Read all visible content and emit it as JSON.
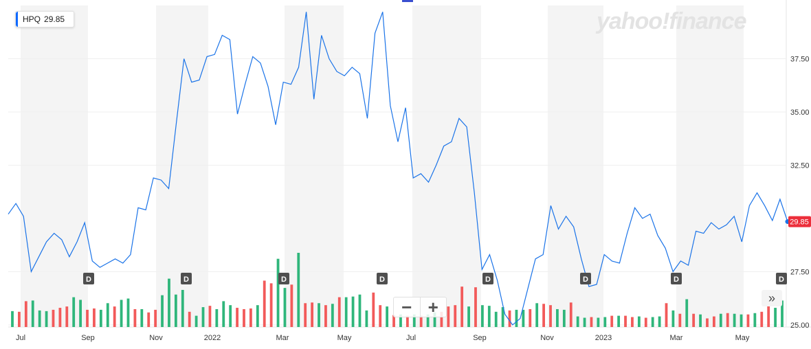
{
  "badge": {
    "symbol": "HPQ",
    "price": "29.85"
  },
  "logo_text": "yahoo!finance",
  "zoom": {
    "minus": "−",
    "plus": "+"
  },
  "expand_icon": "»",
  "colors": {
    "line": "#1a73e8",
    "up": "#2fb67b",
    "down": "#f25a5a",
    "band": "#f4f4f4",
    "last": "#ec2f3b",
    "marker": "#4f4f4f"
  },
  "chart_data": {
    "type": "line",
    "y_ticks": [
      "25.00",
      "27.50",
      "32.50",
      "35.00",
      "37.50"
    ],
    "y_range": [
      24.9,
      40.0
    ],
    "x_tick_labels": [
      "Jul",
      "Sep",
      "Nov",
      "2022",
      "Mar",
      "May",
      "Jul",
      "Sep",
      "Nov",
      "2023",
      "Mar",
      "May"
    ],
    "last_price": "29.85",
    "dividend_label": "D",
    "dividend_count": 8,
    "series": [
      {
        "values": [
          30.2,
          30.7,
          30.1,
          27.5,
          28.2,
          28.9,
          29.3,
          29.0,
          28.2,
          28.9,
          29.8,
          28.0,
          27.7,
          27.9,
          28.1,
          27.9,
          28.3,
          30.5,
          30.4,
          31.9,
          31.8,
          31.4,
          34.5,
          37.5,
          36.4,
          36.5,
          37.6,
          37.7,
          38.6,
          38.4,
          34.9,
          36.3,
          37.6,
          37.3,
          36.2,
          34.4,
          36.4,
          36.3,
          37.1,
          39.7,
          35.6,
          38.6,
          37.5,
          36.9,
          36.7,
          37.1,
          36.8,
          34.7,
          38.7,
          39.7,
          35.3,
          33.6,
          35.2,
          31.9,
          32.1,
          31.7,
          32.5,
          33.4,
          33.6,
          34.7,
          34.3,
          31.2,
          27.6,
          28.3,
          27.1,
          25.5,
          25.0,
          25.3,
          26.7,
          28.1,
          28.3,
          30.6,
          29.5,
          30.1,
          29.6,
          28.1,
          26.8,
          26.9,
          28.3,
          28.0,
          27.9,
          29.3,
          30.5,
          30.0,
          30.2,
          29.2,
          28.6,
          27.5,
          28.0,
          27.8,
          29.4,
          29.3,
          29.8,
          29.5,
          29.7,
          30.1,
          28.9,
          30.6,
          31.2,
          30.6,
          29.9,
          30.9,
          29.85
        ]
      }
    ],
    "volume": [
      2.4,
      2.3,
      3.9,
      4.0,
      2.5,
      2.4,
      2.6,
      2.9,
      3.1,
      4.5,
      4.1,
      2.6,
      2.8,
      2.6,
      3.6,
      3.1,
      4.1,
      4.3,
      2.7,
      2.7,
      2.2,
      2.6,
      4.8,
      7.3,
      4.9,
      5.6,
      2.3,
      1.7,
      3.0,
      3.2,
      2.7,
      3.9,
      3.3,
      2.9,
      2.7,
      2.8,
      3.3,
      7.0,
      6.6,
      10.3,
      5.9,
      6.4,
      11.2,
      3.6,
      3.7,
      3.6,
      3.3,
      3.5,
      4.5,
      4.5,
      4.6,
      4.9,
      2.5,
      5.2,
      3.3,
      3.1,
      1.8,
      1.9,
      1.7,
      1.9,
      1.7,
      1.9,
      2.2,
      2.3,
      3.1,
      3.3,
      6.1,
      3.1,
      6.0,
      3.3,
      3.2,
      2.3,
      3.0,
      2.5,
      2.6,
      2.6,
      2.7,
      3.6,
      3.5,
      3.3,
      2.7,
      2.6,
      3.7,
      1.6,
      1.4,
      1.5,
      1.4,
      1.5,
      1.7,
      1.7,
      1.7,
      1.5,
      1.6,
      1.4,
      1.5,
      1.6,
      3.6,
      2.5,
      2.0,
      4.2,
      2.0,
      1.9,
      1.3,
      1.6,
      2.0,
      2.1,
      2.0,
      1.9,
      1.9,
      2.1,
      2.3,
      3.5,
      2.9,
      4.0
    ],
    "volume_up": [
      true,
      false,
      false,
      true,
      true,
      true,
      false,
      false,
      false,
      true,
      true,
      false,
      false,
      true,
      true,
      false,
      true,
      true,
      false,
      true,
      false,
      false,
      true,
      true,
      true,
      true,
      false,
      true,
      true,
      false,
      true,
      true,
      true,
      false,
      false,
      false,
      true,
      false,
      false,
      true,
      true,
      false,
      true,
      false,
      false,
      true,
      false,
      true,
      false,
      true,
      true,
      true,
      true,
      false,
      false,
      true,
      false,
      true,
      false,
      true,
      false,
      true,
      true,
      false,
      false,
      false,
      false,
      true,
      false,
      true,
      true,
      true,
      true,
      false,
      true,
      true,
      false,
      true,
      false,
      false,
      true,
      true,
      false,
      true,
      true,
      false,
      true,
      true,
      false,
      true,
      false,
      false,
      true,
      false,
      true,
      true,
      false,
      true,
      false,
      true,
      false,
      true,
      false,
      false,
      true,
      false,
      true,
      true,
      false,
      true,
      false,
      false,
      true,
      true
    ],
    "range_start": "2021-06",
    "range_end": "2023-06"
  }
}
